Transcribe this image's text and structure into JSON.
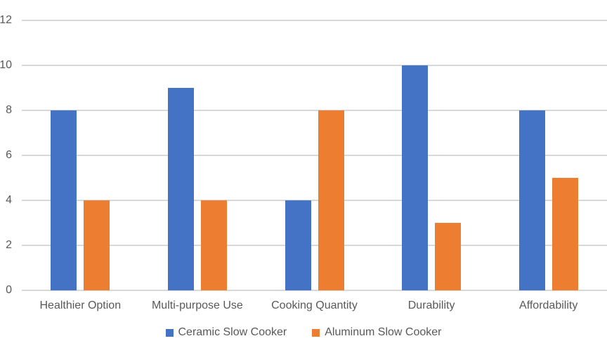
{
  "chart": {
    "background_color": "#ffffff",
    "text_color": "#595959",
    "gridline_color": "#d9d9d9"
  },
  "chart_data": {
    "type": "bar",
    "title": "",
    "xlabel": "",
    "ylabel": "",
    "categories": [
      "Healthier Option",
      "Multi-purpose Use",
      "Cooking Quantity",
      "Durability",
      "Affordability"
    ],
    "series": [
      {
        "name": "Ceramic Slow Cooker",
        "color": "#4472C4",
        "values": [
          8,
          9,
          4,
          10,
          8
        ]
      },
      {
        "name": "Aluminum Slow Cooker",
        "color": "#ED7D31",
        "values": [
          4,
          4,
          8,
          3,
          5
        ]
      }
    ],
    "ylim": [
      0,
      12
    ],
    "yticks": [
      0,
      2,
      4,
      6,
      8,
      10,
      12
    ],
    "grid": true,
    "legend_position": "bottom"
  }
}
